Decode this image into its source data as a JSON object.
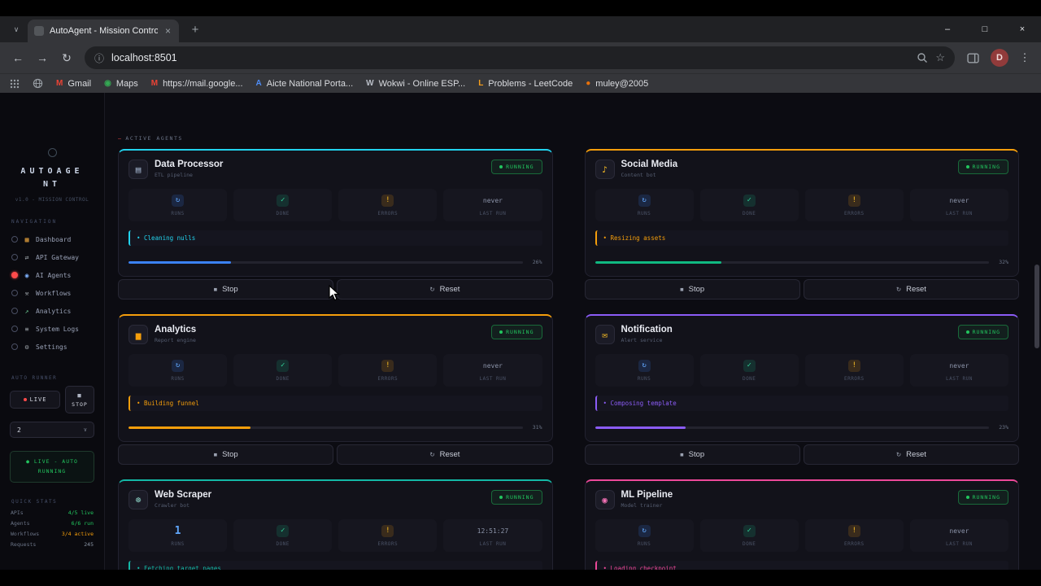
{
  "chrome": {
    "tab_search_chevron": "∨",
    "tab_title": "AutoAgent - Mission Control",
    "tab_close": "×",
    "new_tab": "+",
    "controls": {
      "minimize": "–",
      "maximize": "□",
      "close": "×"
    },
    "nav": {
      "back": "←",
      "forward": "→",
      "reload": "↻"
    },
    "omnibox": {
      "info_icon": "ⓘ",
      "url": "localhost:8501",
      "star": "☆"
    },
    "profile_initial": "D",
    "menu_icon": "⋮",
    "bookmarks": [
      {
        "label": "Gmail",
        "fav": "M",
        "fav_color": "#ea4335"
      },
      {
        "label": "Maps",
        "fav": "◉",
        "fav_color": "#34a853"
      },
      {
        "label": "https://mail.google...",
        "fav": "M",
        "fav_color": "#ea4335"
      },
      {
        "label": "Aicte National Porta...",
        "fav": "A",
        "fav_color": "#4e8cf5"
      },
      {
        "label": "Wokwi - Online ESP...",
        "fav": "W",
        "fav_color": "#b9bec7"
      },
      {
        "label": "Problems - LeetCode",
        "fav": "L",
        "fav_color": "#f89f1b"
      },
      {
        "label": "muley@2005",
        "fav": "●",
        "fav_color": "#e8710a"
      }
    ]
  },
  "sidebar": {
    "logo_line1": "AUTOAGE",
    "logo_line2": "NT",
    "tagline": "v1.0 - MISSION CONTROL",
    "nav_label": "NAVIGATION",
    "items": [
      {
        "glyph": "▦",
        "color": "#e8a33d",
        "label": "Dashboard"
      },
      {
        "glyph": "⇄",
        "color": "#9aa0a6",
        "label": "API Gateway"
      },
      {
        "glyph": "◉",
        "color": "#7fb3ff",
        "label": "AI Agents"
      },
      {
        "glyph": "⚒",
        "color": "#9aa0a6",
        "label": "Workflows"
      },
      {
        "glyph": "↗",
        "color": "#6fcf97",
        "label": "Analytics"
      },
      {
        "glyph": "≡",
        "color": "#9aa0a6",
        "label": "System Logs"
      },
      {
        "glyph": "⚙",
        "color": "#9aa0a6",
        "label": "Settings"
      }
    ],
    "runner_label": "AUTO RUNNER",
    "live_button": "LIVE",
    "stop_icon": "■",
    "stop_button": "STOP",
    "refresh_select": "2",
    "select_chevron": "∨",
    "status_line1": "● LIVE - AUTO",
    "status_line2": "RUNNING",
    "stats_label": "QUICK STATS",
    "stats": [
      {
        "k": "APIs",
        "v": "4/5 live",
        "color": "#22c55e"
      },
      {
        "k": "Agents",
        "v": "6/6 run",
        "color": "#22c55e"
      },
      {
        "k": "Workflows",
        "v": "3/4 active",
        "color": "#f59e0b"
      },
      {
        "k": "Requests",
        "v": "245",
        "color": "#8b95a5"
      }
    ]
  },
  "main": {
    "section_dash": "—",
    "section_label": "ACTIVE AGENTS",
    "stat_labels": [
      "RUNS",
      "DONE",
      "ERRORS",
      "LAST RUN"
    ],
    "stop_label": "Stop",
    "stop_icon": "■",
    "reset_label": "Reset",
    "reset_icon": "↻",
    "cards": [
      {
        "name": "Data Processor",
        "subtitle": "ETL pipeline",
        "status": "RUNNING",
        "icon_glyph": "▤",
        "icon_color": "#9fb0c9",
        "accent": "#22d3ee",
        "stat_glyphs": [
          "↻",
          "✓",
          "!"
        ],
        "last_run": "never",
        "task": "Cleaning nulls",
        "progress_color": "#3b82f6",
        "progress_pct": 26,
        "progress_label": "26%"
      },
      {
        "name": "Social Media",
        "subtitle": "Content bot",
        "status": "RUNNING",
        "icon_glyph": "♪",
        "icon_color": "#fbbf24",
        "accent": "#f59e0b",
        "stat_glyphs": [
          "↻",
          "✓",
          "!"
        ],
        "last_run": "never",
        "task": "Resizing assets",
        "progress_color": "#10b981",
        "progress_pct": 32,
        "progress_label": "32%"
      },
      {
        "name": "Analytics",
        "subtitle": "Report engine",
        "status": "RUNNING",
        "icon_glyph": "▅",
        "icon_color": "#f59e0b",
        "accent": "#f59e0b",
        "stat_glyphs": [
          "↻",
          "✓",
          "!"
        ],
        "last_run": "never",
        "task": "Building funnel",
        "progress_color": "#f59e0b",
        "progress_pct": 31,
        "progress_label": "31%"
      },
      {
        "name": "Notification",
        "subtitle": "Alert service",
        "status": "RUNNING",
        "icon_glyph": "✉",
        "icon_color": "#fbbf24",
        "accent": "#8b5cf6",
        "stat_glyphs": [
          "↻",
          "✓",
          "!"
        ],
        "last_run": "never",
        "task": "Composing template",
        "progress_color": "#8b5cf6",
        "progress_pct": 23,
        "progress_label": "23%"
      },
      {
        "name": "Web Scraper",
        "subtitle": "Crawler bot",
        "status": "RUNNING",
        "icon_glyph": "☸",
        "icon_color": "#8fd6c9",
        "accent": "#14b8a6",
        "stat_glyphs": [
          "1",
          "✓",
          "!"
        ],
        "last_run": "12:51:27",
        "task": "Fetching target pages",
        "progress_color": "#14b8a6",
        "progress_pct": 0,
        "progress_label": ""
      },
      {
        "name": "ML Pipeline",
        "subtitle": "Model trainer",
        "status": "RUNNING",
        "icon_glyph": "◉",
        "icon_color": "#f472b6",
        "accent": "#ec4899",
        "stat_glyphs": [
          "↻",
          "✓",
          "!"
        ],
        "last_run": "never",
        "task": "Loading checkpoint",
        "progress_color": "#ec4899",
        "progress_pct": 0,
        "progress_label": ""
      }
    ]
  }
}
